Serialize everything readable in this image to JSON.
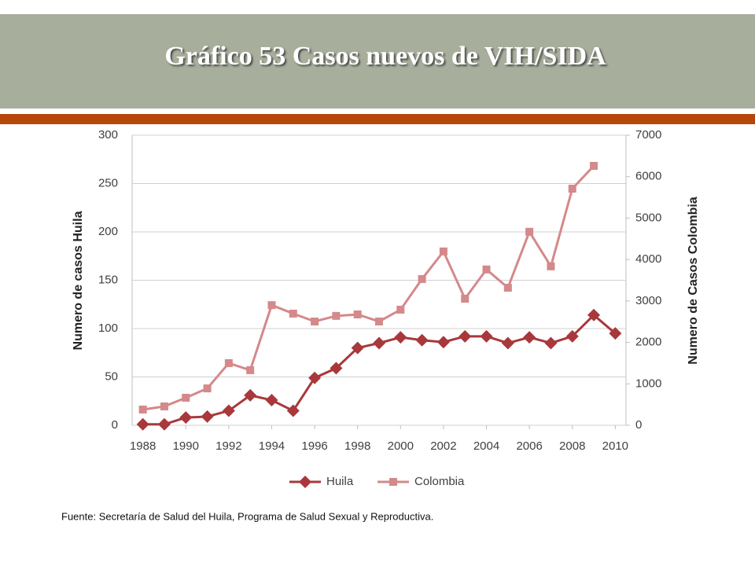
{
  "title": "Gráfico 53 Casos nuevos de VIH/SIDA",
  "source": "Fuente: Secretaría de Salud del Huila, Programa de Salud Sexual y Reproductiva.",
  "chart_data": {
    "type": "line",
    "x": [
      1988,
      1989,
      1990,
      1991,
      1992,
      1993,
      1994,
      1995,
      1996,
      1997,
      1998,
      1999,
      2000,
      2001,
      2002,
      2003,
      2004,
      2005,
      2006,
      2007,
      2008,
      2009,
      2010
    ],
    "series": [
      {
        "name": "Huila",
        "color": "#a8383b",
        "marker": "diamond",
        "values": [
          1,
          1,
          8,
          9,
          15,
          31,
          26,
          15,
          49,
          59,
          80,
          85,
          91,
          88,
          86,
          92,
          92,
          85,
          91,
          85,
          92,
          114,
          95
        ]
      },
      {
        "name": "Colombia",
        "color": "#d4898a",
        "marker": "square",
        "axis": "y2",
        "values": [
          380,
          455,
          665,
          890,
          1500,
          1330,
          2900,
          2695,
          2505,
          2640,
          2675,
          2505,
          2790,
          3530,
          4195,
          3055,
          3760,
          3320,
          4670,
          3835,
          5710,
          6260,
          null
        ]
      }
    ],
    "xlim": [
      1987.5,
      2010.5
    ],
    "xticks": [
      1988,
      1990,
      1992,
      1994,
      1996,
      1998,
      2000,
      2002,
      2004,
      2006,
      2008,
      2010
    ],
    "ylim": [
      0,
      300
    ],
    "yticks": [
      0,
      50,
      100,
      150,
      200,
      250,
      300
    ],
    "y2lim": [
      0,
      7000
    ],
    "y2ticks": [
      0,
      1000,
      2000,
      3000,
      4000,
      5000,
      6000,
      7000
    ],
    "ylabel": "Numero de casos Huila",
    "y2label": "Numero de Casos Colombia",
    "grid": true,
    "legend": "bottom"
  }
}
